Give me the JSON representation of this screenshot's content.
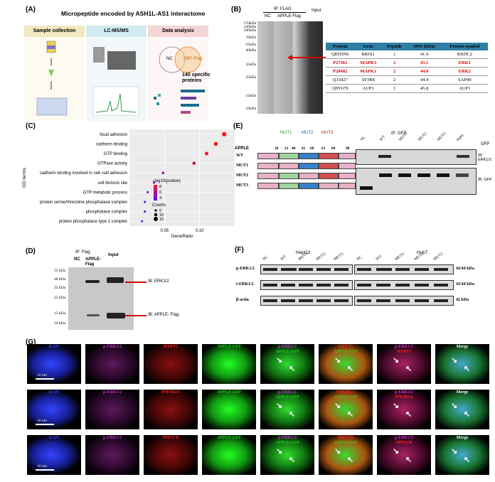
{
  "panelA": {
    "label": "(A)",
    "title": "Micropeptide encoded by ASH1L-AS1 interactome",
    "step1": "Sample collection",
    "step2": "LC-MS/MS",
    "step3": "Data analysis",
    "venn_left": "NC",
    "venn_right": "ORF-Flag",
    "specific": "140 specific proteins"
  },
  "panelB": {
    "label": "(B)",
    "ip": "IP: FLAG",
    "nc": "NC",
    "flag": "APPLE-Flag",
    "input": "Input",
    "markers": [
      "170kDa",
      "130kDa",
      "100kDa",
      "70kDa",
      "55kDa",
      "40kDa",
      "35kDa",
      "25kDa",
      "15kDa",
      "10kDa"
    ],
    "headers": [
      "Protein",
      "Gene",
      "Peptide",
      "MW (kDa)",
      "Protein symbol"
    ],
    "rows": [
      [
        "Q8TDN6",
        "BRIX1",
        "1",
        "41.4",
        "BXDC2"
      ],
      [
        "P27361",
        "MAPK3",
        "2",
        "43.1",
        "ERK1"
      ],
      [
        "P28482",
        "MAPK1",
        "2",
        "44.0",
        "ERK2"
      ],
      [
        "Q15427",
        "SF3B4",
        "2",
        "44.4",
        "SAP49"
      ],
      [
        "Q9Y679",
        "AUP1",
        "1",
        "45.8",
        "AUP1"
      ]
    ]
  },
  "panelC": {
    "label": "(C)",
    "ylabel": "GO terms",
    "xlabel": "GeneRatio",
    "legend_title": "−log10(pvalue)",
    "legend_ticks": [
      "8",
      "6",
      "4"
    ],
    "counts_title": "Counts",
    "counts": [
      "5",
      "10",
      "15"
    ],
    "xticks": [
      "0.05",
      "0.10"
    ]
  },
  "chart_data": {
    "type": "scatter",
    "title": "",
    "xlabel": "GeneRatio",
    "ylabel": "GO terms",
    "categories": [
      "focal adhesion",
      "cadherin binding",
      "GTP binding",
      "GTPase activity",
      "cadherin binding involved in cell−cell adhesion",
      "cell division site",
      "GTP metabolic process",
      "protein serine/threonine phosphatase complex",
      "phosphatase complex",
      "protein phosphatase type 1 complex"
    ],
    "x": [
      0.135,
      0.123,
      0.11,
      0.092,
      0.048,
      0.035,
      0.026,
      0.022,
      0.022,
      0.018
    ],
    "pvalue": [
      9,
      8.8,
      8.5,
      7.5,
      6,
      5.5,
      4.5,
      4.2,
      4.2,
      4
    ],
    "counts": [
      16,
      14,
      12,
      10,
      6,
      5,
      4,
      4,
      4,
      3
    ],
    "xlim": [
      0,
      0.15
    ]
  },
  "panelD": {
    "label": "(D)",
    "ip": "IP: Flag",
    "nc": "NC",
    "flag": "APPLE-Flag",
    "input": "Input",
    "markers": [
      "55 kDa",
      "40 kDa",
      "35 kDa",
      "25 kDa",
      "15 kDa",
      "10 kDa"
    ],
    "ib1": "IB: ERK1/2",
    "ib2": "IB: APPLE- Flag"
  },
  "panelE": {
    "label": "(E)",
    "construct": "APPLE",
    "positions": [
      "20",
      "21",
      "40",
      "41",
      "60",
      "61",
      "80",
      "90"
    ],
    "mut1": "MUT1",
    "mut2": "MUT2",
    "mut3": "MUT3",
    "wt": "WT",
    "ip": "IP: GFP",
    "lanes": [
      "NC",
      "WT",
      "MUT1",
      "MUT2",
      "MUT3",
      "Input"
    ],
    "gfp": "GFP",
    "ib1": "IB: ERK1/2",
    "ib2": "IB: GFP"
  },
  "panelF": {
    "label": "(F)",
    "hepg2": "HepG2",
    "huh7": "Huh7",
    "lanes": [
      "NC",
      "WT",
      "MUT1",
      "MUT2",
      "MUT3"
    ],
    "rows": [
      "p-ERK1/2",
      "t-ERK1/2",
      "β-actin"
    ],
    "kda": [
      "42/44 kDa",
      "42/44 kDa",
      "42 kDa"
    ]
  },
  "panelG": {
    "label": "(G)",
    "scale": "10 um",
    "row1": [
      "DAPI",
      "p-ERK1/2",
      "MYPT1",
      "APPLE-GFP",
      "p-ERK1/2\nAPPLE-GFP",
      "MYPT1\nAPPLE-GFP",
      "p-ERK1/2\nMYPT1",
      "Merge"
    ],
    "row2": [
      "DAPI",
      "p-ERK1/2",
      "PPP2R2A",
      "APPLE-GFP",
      "p-ERK1/2\nAPPLE-GFP",
      "PPP2R2A\nAPPLE-GFP",
      "p-ERK1/2\nPPP2R2A",
      "Merge"
    ],
    "row3": [
      "DAPI",
      "p-ERK1/2",
      "PPP1CB",
      "APPLE-GFP",
      "p-ERK1/2\nAPPLE-GFP",
      "PPP1CB\nAPPLE-GFP",
      "p-ERK1/2\nPPP1CB",
      "Merge"
    ]
  },
  "colors": {
    "dapi": "#3344ff",
    "perk": "#cc33cc",
    "red": "#ff2222",
    "green": "#22cc22",
    "teal": "#1a6d8a"
  }
}
